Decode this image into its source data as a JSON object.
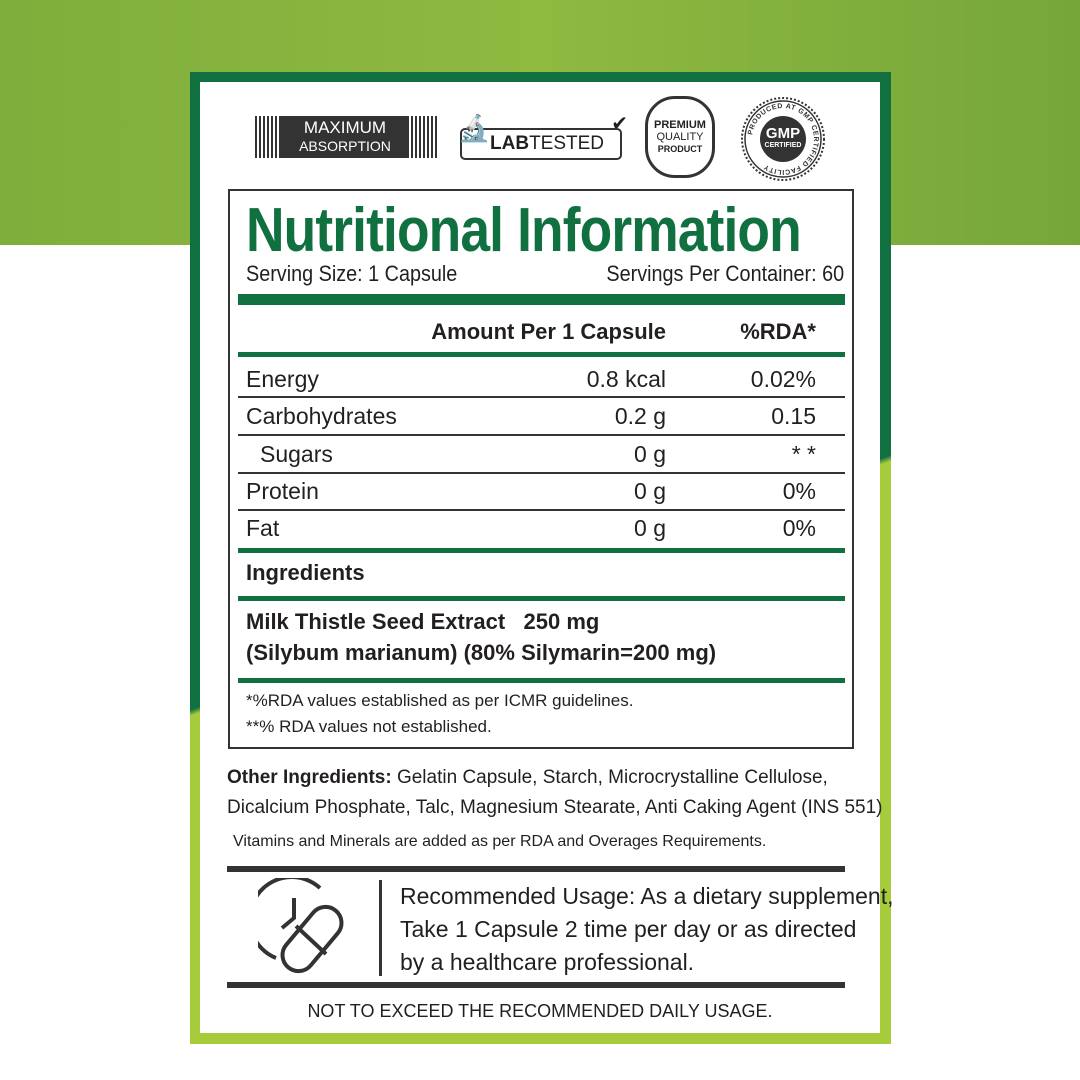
{
  "badges": {
    "max_line1": "MAXIMUM",
    "max_line2": "ABSORPTION",
    "lab_bold": "LAB",
    "lab_rest": "TESTED",
    "premium_line1": "PREMIUM",
    "premium_line2": "QUALITY",
    "premium_line3": "PRODUCT",
    "gmp_main": "GMP",
    "gmp_sub": "CERTIFIED",
    "gmp_ring": "PRODUCED AT GMP CERTIFIED FACILITY"
  },
  "panel": {
    "title": "Nutritional Information",
    "serving_size": "Serving Size: 1 Capsule",
    "servings_per_container": "Servings Per Container: 60",
    "col_amount": "Amount Per 1 Capsule",
    "col_rda": "%RDA*",
    "rows": [
      {
        "name": "Energy",
        "amount": "0.8 kcal",
        "rda": "0.02%"
      },
      {
        "name": "Carbohydrates",
        "amount": "0.2 g",
        "rda": "0.15"
      },
      {
        "name": "Sugars",
        "amount": "0 g",
        "rda": "* *"
      },
      {
        "name": "Protein",
        "amount": "0 g",
        "rda": "0%"
      },
      {
        "name": "Fat",
        "amount": "0 g",
        "rda": "0%"
      }
    ],
    "ingredients_heading": "Ingredients",
    "ingredient_line1_name": "Milk Thistle Seed Extract",
    "ingredient_line1_amount": "250 mg",
    "ingredient_line2": "(Silybum marianum) (80% Silymarin=200 mg)",
    "footnote1": "*%RDA values established as per ICMR guidelines.",
    "footnote2": "**% RDA values not established."
  },
  "other": {
    "label": "Other Ingredients:",
    "line1": " Gelatin Capsule, Starch, Microcrystalline Cellulose,",
    "line2": "Dicalcium Phosphate, Talc, Magnesium Stearate, Anti Caking Agent (INS 551)"
  },
  "vitamins_note": "Vitamins and Minerals are added as per RDA and Overages Requirements.",
  "usage": {
    "label": "Recommended Usage:",
    "line1": " As a dietary supplement,",
    "line2": "Take 1 Capsule 2 time per day or as directed",
    "line3": "by a healthcare professional."
  },
  "warning": "NOT TO EXCEED THE RECOMMENDED DAILY USAGE.",
  "colors": {
    "dark_green": "#107040",
    "lime": "#a6cc3c",
    "text": "#231f20"
  }
}
